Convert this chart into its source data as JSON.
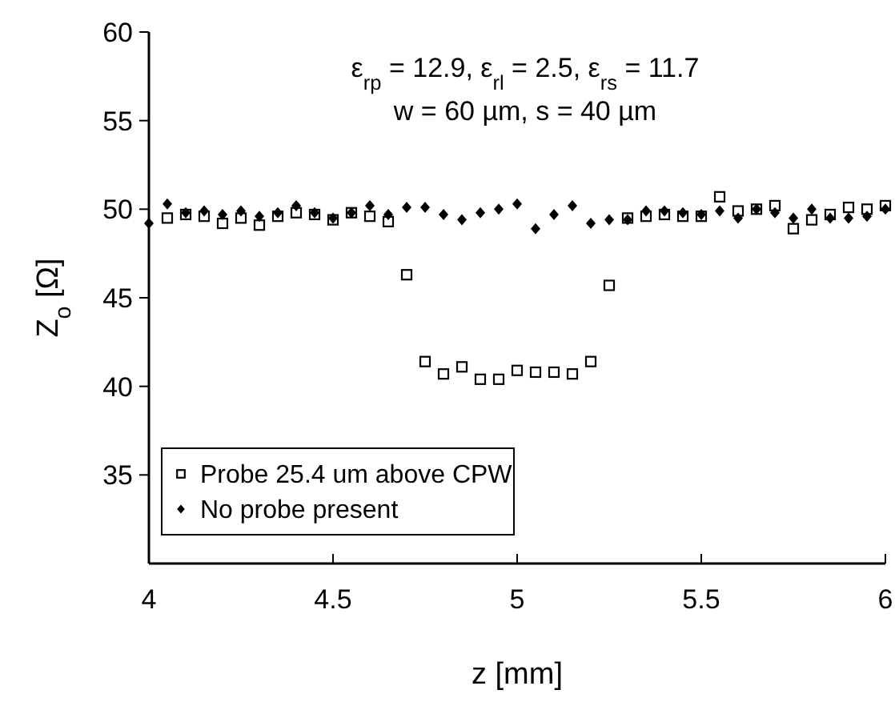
{
  "chart_data": {
    "type": "scatter",
    "xlabel": "z [mm]",
    "ylabel": "Z$_{o}$ [Ω]",
    "annotations": [
      "ε$_{rp}$ = 12.9, ε$_{rl}$ = 2.5, ε$_{rs}$ = 11.7",
      "w = 60 µm, s = 40 µm"
    ],
    "xlim": [
      4,
      6
    ],
    "xticks": [
      4,
      4.5,
      5,
      5.5,
      6
    ],
    "ylim": [
      30,
      60
    ],
    "yticks": [
      35,
      40,
      45,
      50,
      55,
      60
    ],
    "grid": false,
    "legend": "bottom left",
    "series": [
      {
        "name": "Probe 25.4 um above CPW",
        "color": "#000000",
        "marker": "square",
        "x": [
          4.05,
          4.1,
          4.15,
          4.2,
          4.25,
          4.3,
          4.35,
          4.4,
          4.45,
          4.5,
          4.55,
          4.6,
          4.65,
          4.7,
          4.75,
          4.8,
          4.85,
          4.9,
          4.95,
          5,
          5.05,
          5.1,
          5.15,
          5.2,
          5.25,
          5.3,
          5.35,
          5.4,
          5.45,
          5.5,
          5.55,
          5.6,
          5.65,
          5.7,
          5.75,
          5.8,
          5.85,
          5.9,
          5.95,
          6
        ],
        "values": [
          49.5,
          49.7,
          49.6,
          49.2,
          49.5,
          49.1,
          49.6,
          49.8,
          49.7,
          49.4,
          49.8,
          49.6,
          49.3,
          46.3,
          41.4,
          40.7,
          41.1,
          40.4,
          40.4,
          40.9,
          40.8,
          40.8,
          40.7,
          41.4,
          45.7,
          49.5,
          49.6,
          49.7,
          49.6,
          49.6,
          50.7,
          49.9,
          50,
          50.2,
          48.9,
          49.4,
          49.7,
          50.1,
          50,
          50.2
        ]
      },
      {
        "name": "No probe present",
        "color": "#000000",
        "marker": "diamond",
        "x": [
          4,
          4.05,
          4.1,
          4.15,
          4.2,
          4.25,
          4.3,
          4.35,
          4.4,
          4.45,
          4.5,
          4.55,
          4.6,
          4.65,
          4.7,
          4.75,
          4.8,
          4.85,
          4.9,
          4.95,
          5,
          5.05,
          5.1,
          5.15,
          5.2,
          5.25,
          5.3,
          5.35,
          5.4,
          5.45,
          5.5,
          5.55,
          5.6,
          5.65,
          5.7,
          5.75,
          5.8,
          5.85,
          5.9,
          5.95,
          6
        ],
        "values": [
          49.2,
          50.3,
          49.8,
          49.9,
          49.7,
          49.9,
          49.6,
          49.8,
          50.2,
          49.8,
          49.5,
          49.8,
          50.2,
          49.7,
          50.1,
          50.1,
          49.7,
          49.4,
          49.8,
          50,
          50.3,
          48.9,
          49.7,
          50.2,
          49.2,
          49.4,
          49.4,
          49.9,
          49.9,
          49.8,
          49.7,
          49.9,
          49.5,
          50,
          49.8,
          49.5,
          50,
          49.5,
          49.5,
          49.6,
          50
        ]
      }
    ]
  }
}
